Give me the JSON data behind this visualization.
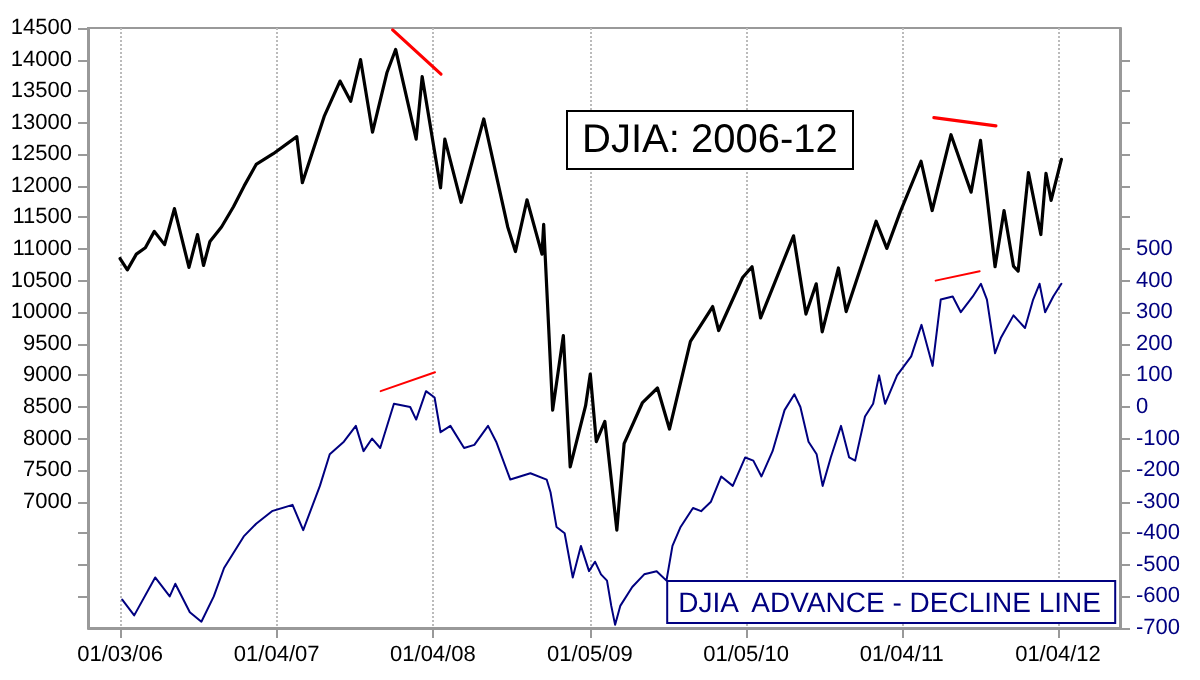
{
  "chart_data": {
    "type": "line",
    "title": "DJIA: 2006-12",
    "grid": "x",
    "marker": "none",
    "line_style": "solid",
    "xlim": [
      "2005-10-20",
      "2012-05-28"
    ],
    "xticks": [
      {
        "value": "2006-01-03",
        "label": "01/03/06"
      },
      {
        "value": "2007-01-04",
        "label": "01/04/07"
      },
      {
        "value": "2008-01-04",
        "label": "01/04/08"
      },
      {
        "value": "2009-01-05",
        "label": "01/05/09"
      },
      {
        "value": "2010-01-05",
        "label": "01/05/10"
      },
      {
        "value": "2011-01-04",
        "label": "01/04/11"
      },
      {
        "value": "2012-01-04",
        "label": "01/04/12"
      }
    ],
    "ylim": [
      5000,
      14500
    ],
    "yticks": [
      {
        "value": 5500,
        "label": null
      },
      {
        "value": 6000,
        "label": null
      },
      {
        "value": 6500,
        "label": null
      },
      7000,
      7500,
      8000,
      8500,
      9000,
      9500,
      10000,
      10500,
      11000,
      11500,
      12000,
      12500,
      13000,
      13500,
      14000,
      14500
    ],
    "y2lim": [
      -700,
      1200
    ],
    "y2ticks": [
      -700,
      -600,
      -500,
      -400,
      -300,
      -200,
      -100,
      0,
      100,
      200,
      300,
      400,
      500,
      {
        "value": 600,
        "label": null
      },
      {
        "value": 700,
        "label": null
      },
      {
        "value": 800,
        "label": null
      },
      {
        "value": 900,
        "label": null
      },
      {
        "value": 1000,
        "label": null
      },
      {
        "value": 1100,
        "label": null
      }
    ],
    "series": [
      {
        "color": "#000000",
        "x": [
          "2006-01-03",
          "2006-01-20",
          "2006-02-10",
          "2006-03-03",
          "2006-03-24",
          "2006-04-17",
          "2006-05-10",
          "2006-06-13",
          "2006-07-03",
          "2006-07-17",
          "2006-08-01",
          "2006-08-28",
          "2006-09-25",
          "2006-10-20",
          "2006-11-17",
          "2006-12-27",
          "2007-02-20",
          "2007-03-05",
          "2007-04-25",
          "2007-06-01",
          "2007-06-26",
          "2007-07-19",
          "2007-08-16",
          "2007-09-19",
          "2007-10-09",
          "2007-11-26",
          "2007-12-10",
          "2008-01-22",
          "2008-02-01",
          "2008-03-10",
          "2008-05-02",
          "2008-06-27",
          "2008-07-15",
          "2008-08-11",
          "2008-09-15",
          "2008-09-19",
          "2008-10-10",
          "2008-11-04",
          "2008-11-20",
          "2008-12-26",
          "2009-01-06",
          "2009-01-20",
          "2009-02-09",
          "2009-03-09",
          "2009-03-26",
          "2009-05-08",
          "2009-06-12",
          "2009-07-10",
          "2009-08-28",
          "2009-10-19",
          "2009-11-02",
          "2009-12-28",
          "2010-01-19",
          "2010-02-08",
          "2010-04-26",
          "2010-05-25",
          "2010-06-18",
          "2010-07-02",
          "2010-08-09",
          "2010-08-27",
          "2010-11-05",
          "2010-11-30",
          "2010-12-31",
          "2011-02-18",
          "2011-03-16",
          "2011-04-29",
          "2011-06-15",
          "2011-07-07",
          "2011-08-10",
          "2011-08-31",
          "2011-09-22",
          "2011-10-03",
          "2011-10-27",
          "2011-11-25",
          "2011-12-07",
          "2011-12-19",
          "2012-01-12"
        ],
        "values": [
          10850,
          10670,
          10920,
          11020,
          11280,
          11070,
          11640,
          10710,
          11230,
          10740,
          11120,
          11350,
          11670,
          12000,
          12340,
          12510,
          12780,
          12050,
          13100,
          13660,
          13340,
          14000,
          12850,
          13800,
          14160,
          12740,
          13730,
          11970,
          12740,
          11740,
          13060,
          11350,
          10960,
          11780,
          10920,
          11390,
          8450,
          9630,
          7550,
          8520,
          9020,
          7950,
          8270,
          6550,
          7920,
          8570,
          8800,
          8150,
          9540,
          10090,
          9710,
          10550,
          10720,
          9910,
          11210,
          9970,
          10450,
          9690,
          10700,
          10010,
          11440,
          11010,
          11580,
          12390,
          11610,
          12810,
          11900,
          12720,
          10720,
          11610,
          10730,
          10650,
          12210,
          11230,
          12200,
          11770,
          12420
        ]
      },
      {
        "name": "DJIA  ADVANCE - DECLINE LINE",
        "color": "#000080",
        "axis": "y2",
        "x": [
          "2006-01-08",
          "2006-02-05",
          "2006-03-26",
          "2006-04-29",
          "2006-05-12",
          "2006-06-15",
          "2006-07-12",
          "2006-08-10",
          "2006-09-03",
          "2006-10-19",
          "2006-11-17",
          "2006-12-24",
          "2007-02-10",
          "2007-03-07",
          "2007-04-15",
          "2007-05-08",
          "2007-06-10",
          "2007-07-08",
          "2007-07-26",
          "2007-08-15",
          "2007-09-03",
          "2007-10-05",
          "2007-11-12",
          "2007-11-26",
          "2007-12-19",
          "2008-01-08",
          "2008-01-22",
          "2008-02-14",
          "2008-03-17",
          "2008-04-10",
          "2008-05-12",
          "2008-05-31",
          "2008-07-03",
          "2008-08-19",
          "2008-09-26",
          "2008-10-05",
          "2008-10-19",
          "2008-11-07",
          "2008-11-26",
          "2008-12-15",
          "2009-01-03",
          "2009-01-17",
          "2009-01-31",
          "2009-02-14",
          "2009-02-24",
          "2009-03-05",
          "2009-03-17",
          "2009-04-14",
          "2009-05-12",
          "2009-06-10",
          "2009-07-03",
          "2009-07-17",
          "2009-08-05",
          "2009-09-03",
          "2009-09-22",
          "2009-10-15",
          "2009-11-08",
          "2009-12-05",
          "2010-01-03",
          "2010-01-22",
          "2010-02-10",
          "2010-03-08",
          "2010-04-05",
          "2010-04-28",
          "2010-05-12",
          "2010-05-31",
          "2010-06-19",
          "2010-07-03",
          "2010-07-22",
          "2010-08-15",
          "2010-09-03",
          "2010-09-17",
          "2010-10-10",
          "2010-10-29",
          "2010-11-12",
          "2010-11-26",
          "2010-12-24",
          "2011-01-26",
          "2011-02-19",
          "2011-03-17",
          "2011-04-05",
          "2011-05-03",
          "2011-05-22",
          "2011-06-19",
          "2011-07-08",
          "2011-07-22",
          "2011-08-10",
          "2011-08-24",
          "2011-09-22",
          "2011-10-19",
          "2011-11-07",
          "2011-11-22",
          "2011-12-05",
          "2011-12-24",
          "2012-01-12"
        ],
        "values": [
          -610,
          -660,
          -540,
          -600,
          -560,
          -650,
          -680,
          -600,
          -510,
          -410,
          -370,
          -330,
          -310,
          -390,
          -250,
          -150,
          -110,
          -60,
          -140,
          -100,
          -130,
          10,
          0,
          -40,
          50,
          30,
          -80,
          -60,
          -130,
          -120,
          -60,
          -110,
          -230,
          -210,
          -230,
          -270,
          -380,
          -400,
          -540,
          -440,
          -520,
          -490,
          -530,
          -550,
          -630,
          -690,
          -630,
          -570,
          -530,
          -520,
          -550,
          -440,
          -380,
          -320,
          -330,
          -300,
          -220,
          -250,
          -160,
          -170,
          -220,
          -140,
          -10,
          40,
          0,
          -110,
          -150,
          -250,
          -160,
          -60,
          -160,
          -170,
          -30,
          10,
          100,
          10,
          100,
          160,
          260,
          130,
          340,
          350,
          300,
          350,
          390,
          340,
          170,
          220,
          290,
          250,
          340,
          390,
          300,
          350,
          390
        ]
      },
      {
        "color": "#ff0000",
        "x": [
          "2007-10-02",
          "2008-01-23"
        ],
        "values": [
          14470,
          13770
        ]
      },
      {
        "color": "#ff0000",
        "x": [
          "2011-03-20",
          "2011-08-12"
        ],
        "values": [
          13080,
          12950
        ]
      },
      {
        "color": "#ff0000",
        "axis": "y2",
        "x": [
          "2007-09-04",
          "2008-01-09"
        ],
        "values": [
          50,
          110
        ]
      },
      {
        "color": "#ff0000",
        "axis": "y2",
        "x": [
          "2011-03-24",
          "2011-07-05"
        ],
        "values": [
          400,
          430
        ]
      }
    ]
  }
}
